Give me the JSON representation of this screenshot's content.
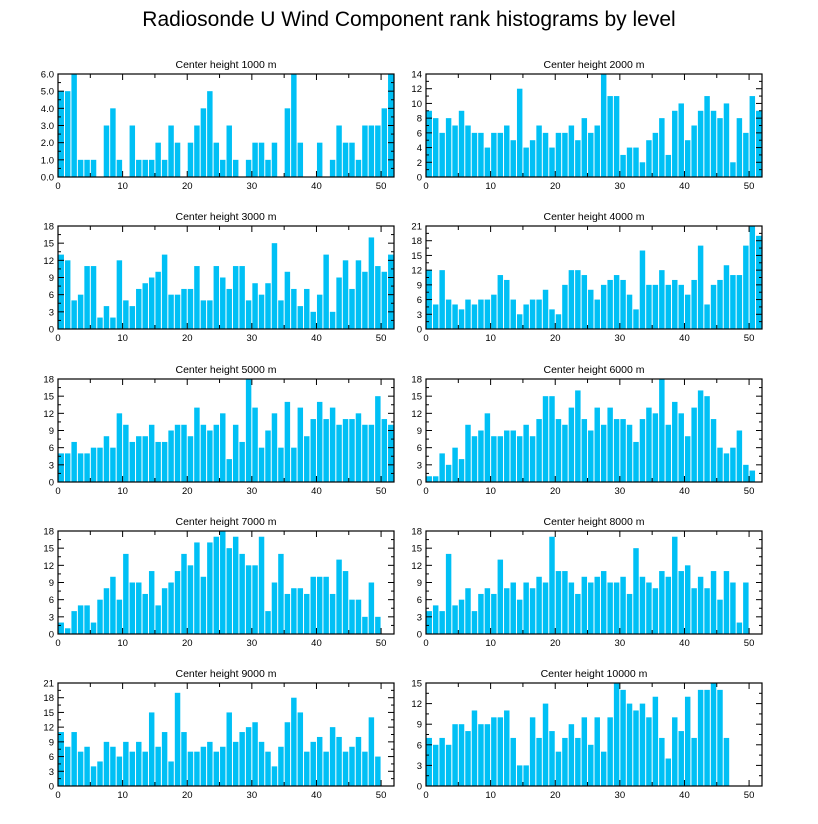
{
  "title": "Radiosonde U Wind Component rank histograms by level",
  "colors": {
    "bar": "#00c0f5",
    "bar_edge": "#ffffff",
    "axis": "#000000",
    "background": "#ffffff"
  },
  "chart_data": [
    {
      "type": "bar",
      "title": "Center height 1000 m",
      "xlabel": "",
      "ylabel": "",
      "ylim": [
        0,
        6
      ],
      "yticks": [
        0,
        1,
        2,
        3,
        4,
        5,
        6
      ],
      "ytick_decimals": 1,
      "xlim": [
        0,
        52
      ],
      "xticks": [
        0,
        10,
        20,
        30,
        40,
        50
      ],
      "values": [
        5,
        5,
        6,
        1,
        1,
        1,
        0,
        3,
        4,
        1,
        0,
        3,
        1,
        1,
        1,
        2,
        1,
        3,
        2,
        0,
        2,
        3,
        4,
        5,
        2,
        1,
        3,
        1,
        0,
        1,
        2,
        2,
        1,
        2,
        0,
        4,
        6,
        2,
        0,
        0,
        2,
        0,
        1,
        3,
        2,
        2,
        1,
        3,
        3,
        3,
        4,
        6
      ]
    },
    {
      "type": "bar",
      "title": "Center height 2000 m",
      "xlabel": "",
      "ylabel": "",
      "ylim": [
        0,
        14
      ],
      "yticks": [
        0,
        2,
        4,
        6,
        8,
        10,
        12,
        14
      ],
      "ytick_decimals": 0,
      "xlim": [
        0,
        52
      ],
      "xticks": [
        0,
        10,
        20,
        30,
        40,
        50
      ],
      "values": [
        9,
        8,
        6,
        8,
        7,
        9,
        7,
        6,
        6,
        4,
        6,
        6,
        7,
        5,
        12,
        4,
        5,
        7,
        6,
        4,
        6,
        6,
        7,
        5,
        8,
        6,
        7,
        14,
        11,
        11,
        3,
        4,
        4,
        2,
        5,
        6,
        8,
        3,
        9,
        10,
        5,
        7,
        9,
        11,
        9,
        8,
        10,
        2,
        8,
        6,
        11,
        9
      ]
    },
    {
      "type": "bar",
      "title": "Center height 3000 m",
      "xlabel": "",
      "ylabel": "",
      "ylim": [
        0,
        18
      ],
      "yticks": [
        0,
        3,
        6,
        9,
        12,
        15,
        18
      ],
      "ytick_decimals": 0,
      "xlim": [
        0,
        52
      ],
      "xticks": [
        0,
        10,
        20,
        30,
        40,
        50
      ],
      "values": [
        13,
        12,
        5,
        6,
        11,
        11,
        2,
        4,
        2,
        12,
        5,
        4,
        7,
        8,
        9,
        10,
        13,
        6,
        6,
        7,
        7,
        11,
        5,
        5,
        11,
        9,
        7,
        11,
        11,
        5,
        8,
        6,
        8,
        15,
        5,
        10,
        7,
        4,
        7,
        3,
        6,
        13,
        3,
        9,
        12,
        7,
        12,
        10,
        16,
        11,
        10,
        13
      ]
    },
    {
      "type": "bar",
      "title": "Center height 4000 m",
      "xlabel": "",
      "ylabel": "",
      "ylim": [
        0,
        21
      ],
      "yticks": [
        0,
        3,
        6,
        9,
        12,
        15,
        18,
        21
      ],
      "ytick_decimals": 0,
      "xlim": [
        0,
        52
      ],
      "xticks": [
        0,
        10,
        20,
        30,
        40,
        50
      ],
      "values": [
        12,
        5,
        12,
        6,
        5,
        4,
        6,
        5,
        6,
        6,
        7,
        11,
        10,
        6,
        3,
        5,
        6,
        6,
        8,
        4,
        3,
        9,
        12,
        12,
        11,
        8,
        6,
        9,
        10,
        11,
        10,
        7,
        4,
        16,
        9,
        9,
        12,
        9,
        10,
        9,
        7,
        10,
        17,
        5,
        9,
        10,
        13,
        11,
        11,
        17,
        21,
        19
      ]
    },
    {
      "type": "bar",
      "title": "Center height 5000 m",
      "xlabel": "",
      "ylabel": "",
      "ylim": [
        0,
        18
      ],
      "yticks": [
        0,
        3,
        6,
        9,
        12,
        15,
        18
      ],
      "ytick_decimals": 0,
      "xlim": [
        0,
        52
      ],
      "xticks": [
        0,
        10,
        20,
        30,
        40,
        50
      ],
      "values": [
        5,
        5,
        7,
        5,
        5,
        6,
        6,
        8,
        6,
        12,
        10,
        7,
        8,
        8,
        10,
        7,
        7,
        9,
        10,
        10,
        8,
        13,
        10,
        9,
        10,
        12,
        4,
        10,
        7,
        18,
        13,
        6,
        9,
        12,
        6,
        14,
        6,
        13,
        8,
        11,
        14,
        11,
        13,
        10,
        11,
        11,
        12,
        10,
        10,
        15,
        11,
        10
      ]
    },
    {
      "type": "bar",
      "title": "Center height 6000 m",
      "xlabel": "",
      "ylabel": "",
      "ylim": [
        0,
        18
      ],
      "yticks": [
        0,
        3,
        6,
        9,
        12,
        15,
        18
      ],
      "ytick_decimals": 0,
      "xlim": [
        0,
        52
      ],
      "xticks": [
        0,
        10,
        20,
        30,
        40,
        50
      ],
      "values": [
        1,
        1,
        5,
        3,
        6,
        4,
        10,
        8,
        9,
        12,
        8,
        8,
        9,
        9,
        8,
        10,
        8,
        11,
        15,
        15,
        11,
        10,
        13,
        16,
        11,
        9,
        13,
        10,
        13,
        11,
        11,
        10,
        7,
        11,
        13,
        12,
        18,
        10,
        14,
        12,
        8,
        13,
        16,
        15,
        11,
        6,
        5,
        6,
        9,
        3,
        2,
        0
      ]
    },
    {
      "type": "bar",
      "title": "Center height 7000 m",
      "xlabel": "",
      "ylabel": "",
      "ylim": [
        0,
        18
      ],
      "yticks": [
        0,
        3,
        6,
        9,
        12,
        15,
        18
      ],
      "ytick_decimals": 0,
      "xlim": [
        0,
        52
      ],
      "xticks": [
        0,
        10,
        20,
        30,
        40,
        50
      ],
      "values": [
        2,
        1,
        4,
        5,
        5,
        2,
        6,
        8,
        10,
        6,
        14,
        9,
        9,
        7,
        11,
        5,
        8,
        9,
        11,
        14,
        12,
        16,
        10,
        16,
        17,
        18,
        15,
        17,
        14,
        12,
        12,
        17,
        4,
        9,
        14,
        7,
        8,
        8,
        7,
        10,
        10,
        10,
        7,
        13,
        11,
        6,
        6,
        3,
        9,
        3,
        0,
        0
      ]
    },
    {
      "type": "bar",
      "title": "Center height 8000 m",
      "xlabel": "",
      "ylabel": "",
      "ylim": [
        0,
        18
      ],
      "yticks": [
        0,
        3,
        6,
        9,
        12,
        15,
        18
      ],
      "ytick_decimals": 0,
      "xlim": [
        0,
        52
      ],
      "xticks": [
        0,
        10,
        20,
        30,
        40,
        50
      ],
      "values": [
        4,
        5,
        4,
        14,
        5,
        6,
        8,
        4,
        7,
        8,
        7,
        13,
        8,
        9,
        6,
        9,
        8,
        10,
        9,
        17,
        11,
        11,
        9,
        7,
        10,
        9,
        10,
        11,
        9,
        9,
        10,
        7,
        15,
        10,
        9,
        8,
        11,
        10,
        17,
        11,
        12,
        8,
        10,
        8,
        11,
        6,
        11,
        9,
        2,
        9,
        0,
        0
      ]
    },
    {
      "type": "bar",
      "title": "Center height 9000 m",
      "xlabel": "",
      "ylabel": "",
      "ylim": [
        0,
        21
      ],
      "yticks": [
        0,
        3,
        6,
        9,
        12,
        15,
        18,
        21
      ],
      "ytick_decimals": 0,
      "xlim": [
        0,
        52
      ],
      "xticks": [
        0,
        10,
        20,
        30,
        40,
        50
      ],
      "values": [
        11,
        8,
        11,
        7,
        8,
        4,
        5,
        9,
        8,
        6,
        9,
        7,
        9,
        7,
        15,
        8,
        11,
        5,
        19,
        11,
        7,
        7,
        8,
        9,
        7,
        8,
        15,
        9,
        11,
        12,
        13,
        9,
        7,
        4,
        8,
        13,
        18,
        15,
        7,
        9,
        10,
        7,
        12,
        10,
        7,
        8,
        10,
        7,
        14,
        6,
        0,
        0
      ]
    },
    {
      "type": "bar",
      "title": "Center height 10000 m",
      "xlabel": "",
      "ylabel": "",
      "ylim": [
        0,
        15
      ],
      "yticks": [
        0,
        3,
        6,
        9,
        12,
        15
      ],
      "ytick_decimals": 0,
      "xlim": [
        0,
        52
      ],
      "xticks": [
        0,
        10,
        20,
        30,
        40,
        50
      ],
      "values": [
        7,
        6,
        7,
        6,
        9,
        9,
        8,
        11,
        9,
        9,
        10,
        10,
        11,
        7,
        3,
        3,
        10,
        7,
        12,
        8,
        5,
        7,
        9,
        7,
        10,
        6,
        10,
        5,
        10,
        15,
        14,
        12,
        11,
        12,
        10,
        13,
        7,
        4,
        10,
        8,
        13,
        7,
        14,
        14,
        15,
        14,
        7,
        0,
        0,
        0,
        0,
        0
      ]
    }
  ]
}
